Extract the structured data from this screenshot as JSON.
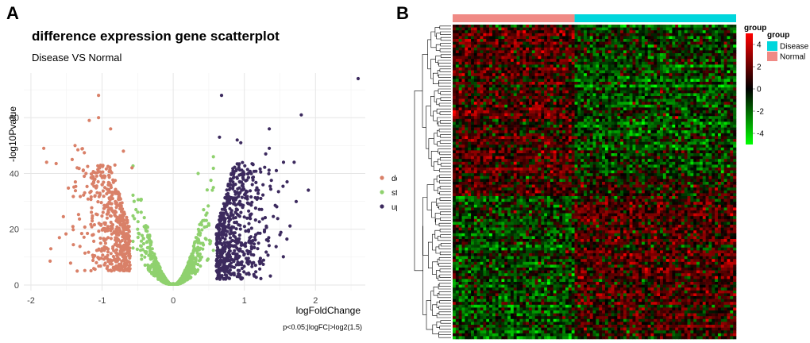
{
  "panels": {
    "a": "A",
    "b": "B"
  },
  "chart_data": [
    {
      "type": "scatter",
      "title": "difference expression gene scatterplot",
      "subtitle": "Disease VS Normal",
      "xlabel": "logFoldChange",
      "ylabel": "-log10Pvalue",
      "caption": "p<0.05;|logFC|>log2(1.5)",
      "xlim": [
        -2.1,
        2.7
      ],
      "ylim": [
        -2,
        76
      ],
      "xticks": [
        -2,
        -1,
        0,
        1,
        2
      ],
      "yticks": [
        0,
        20,
        40,
        60
      ],
      "threshold_logFC": 0.585,
      "legend": {
        "position": "right",
        "entries": [
          "down",
          "stable",
          "up"
        ]
      },
      "colors": {
        "down": "#d98068",
        "stable": "#8fd16e",
        "up": "#3c2a5e"
      },
      "series": [
        {
          "name": "down",
          "sample_points": [
            [
              -1.82,
              49
            ],
            [
              -1.78,
              44
            ],
            [
              -1.6,
              17
            ],
            [
              -1.72,
              13
            ],
            [
              -1.35,
              5
            ],
            [
              -1.05,
              68
            ],
            [
              -1.05,
              60
            ],
            [
              -1.18,
              59
            ],
            [
              -0.88,
              56
            ],
            [
              -1.38,
              50
            ],
            [
              -1.42,
              45
            ],
            [
              -1.35,
              42
            ],
            [
              -1.25,
              39
            ],
            [
              -1.1,
              38
            ],
            [
              -1.0,
              36
            ],
            [
              -0.82,
              43
            ],
            [
              -0.7,
              48
            ],
            [
              -0.58,
              42
            ],
            [
              -0.92,
              28
            ],
            [
              -1.02,
              15
            ],
            [
              -1.08,
              8
            ]
          ]
        },
        {
          "name": "stable",
          "sample_points": [
            [
              0,
              0.5
            ],
            [
              -0.4,
              10
            ],
            [
              0.4,
              10
            ],
            [
              -0.5,
              20
            ],
            [
              0.5,
              22
            ],
            [
              -0.55,
              30
            ],
            [
              0.55,
              34
            ],
            [
              0.35,
              40
            ]
          ]
        },
        {
          "name": "up",
          "sample_points": [
            [
              2.6,
              74
            ],
            [
              1.8,
              61
            ],
            [
              0.68,
              68
            ],
            [
              1.35,
              56
            ],
            [
              0.65,
              53
            ],
            [
              0.9,
              52
            ],
            [
              0.95,
              51
            ],
            [
              1.35,
              49
            ],
            [
              1.3,
              47
            ],
            [
              1.7,
              44
            ],
            [
              1.55,
              44
            ],
            [
              1.45,
              41
            ],
            [
              1.6,
              37
            ],
            [
              1.9,
              34
            ],
            [
              1.5,
              18
            ],
            [
              1.2,
              15
            ],
            [
              0.95,
              8
            ],
            [
              0.8,
              4
            ]
          ]
        }
      ]
    },
    {
      "type": "heatmap",
      "color_scale": {
        "min": -5,
        "max": 5,
        "colors": [
          "#00ff00",
          "#000000",
          "#ff0000"
        ],
        "ticks": [
          4,
          2,
          0,
          -2,
          -4
        ]
      },
      "legend_title": "group",
      "annotation_legend_title": "group",
      "groups": [
        {
          "name": "Disease",
          "color": "#00d6dc"
        },
        {
          "name": "Normal",
          "color": "#f08a85"
        }
      ],
      "column_annotation": [
        {
          "name": "Normal",
          "columns": 40
        },
        {
          "name": "Disease",
          "columns": 53
        }
      ],
      "row_count": 110,
      "row_clusters": [
        {
          "rows": 52,
          "pattern": "high_in_normal"
        },
        {
          "rows": 8,
          "pattern": "high_in_normal_strong"
        },
        {
          "rows": 50,
          "pattern": "high_in_disease"
        }
      ]
    }
  ]
}
